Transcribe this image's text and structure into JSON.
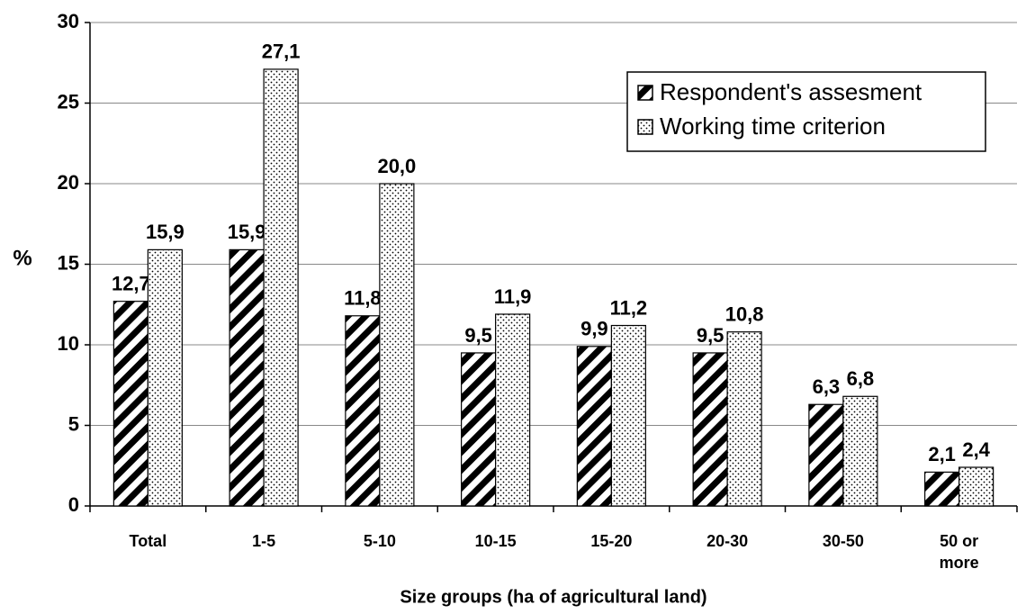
{
  "chart_data": {
    "type": "bar",
    "y_label": "%",
    "x_label": "Size groups (ha of agricultural land)",
    "categories": [
      "Total",
      "1-5",
      "5-10",
      "10-15",
      "15-20",
      "20-30",
      "30-50",
      "50 or more"
    ],
    "series": [
      {
        "name": "Respondent's assesment",
        "color": "#000000",
        "pattern": "hatch",
        "values": [
          12.7,
          15.9,
          11.8,
          9.5,
          9.9,
          9.5,
          6.3,
          2.1
        ],
        "value_labels": [
          "12,7",
          "15,9",
          "11,8",
          "9,5",
          "9,9",
          "9,5",
          "6,3",
          "2,1"
        ]
      },
      {
        "name": "Working time criterion",
        "color": "#000000",
        "pattern": "dots",
        "values": [
          15.9,
          27.1,
          20.0,
          11.9,
          11.2,
          10.8,
          6.8,
          2.4
        ],
        "value_labels": [
          "15,9",
          "27,1",
          "20,0",
          "11,9",
          "11,2",
          "10,8",
          "6,8",
          "2,4"
        ]
      }
    ],
    "ylim": [
      0,
      30
    ],
    "yticks": [
      0,
      5,
      10,
      15,
      20,
      25,
      30
    ],
    "grid": true,
    "legend": "upper right"
  }
}
